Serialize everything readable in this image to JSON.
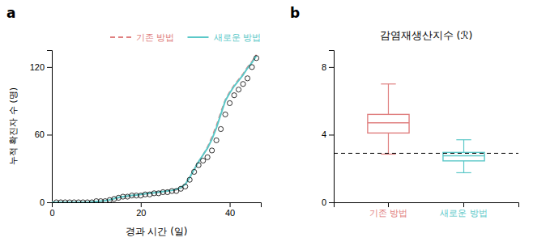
{
  "chart_data": [
    {
      "type": "line",
      "panel_label": "a",
      "xlabel": "경과 시간 (일)",
      "ylabel": "누적 확진자 수 (명)",
      "xlim": [
        0,
        47
      ],
      "ylim": [
        0,
        135
      ],
      "xticks": [
        0,
        20,
        40
      ],
      "yticks": [
        0,
        60,
        120
      ],
      "grid": false,
      "legend": "upper right",
      "series": [
        {
          "name": "기존 방법",
          "type": "line",
          "line_style": "dashed",
          "color": "#e08080",
          "x": [
            0,
            2,
            4,
            6,
            8,
            10,
            11,
            12,
            13,
            14,
            15,
            16,
            17,
            18,
            19,
            20,
            21,
            22,
            23,
            24,
            25,
            26,
            27,
            28,
            29,
            30,
            31,
            32,
            33,
            34,
            35,
            36,
            37,
            38,
            39,
            40,
            41,
            42,
            43,
            44,
            45,
            46
          ],
          "values": [
            0,
            0,
            0,
            0,
            0,
            0.5,
            0.8,
            1.2,
            2.0,
            3.0,
            4.0,
            4.7,
            5.3,
            5.8,
            6.3,
            6.8,
            7.3,
            7.8,
            8.3,
            8.8,
            9.3,
            9.8,
            10.3,
            11.0,
            12.5,
            16,
            22,
            29,
            36,
            42,
            49,
            58,
            68,
            80,
            91,
            98,
            104,
            109,
            114,
            120,
            125,
            131
          ]
        },
        {
          "name": "새로운 방법",
          "type": "line",
          "line_style": "solid",
          "color": "#5bc8c8",
          "x": [
            0,
            2,
            4,
            6,
            8,
            10,
            11,
            12,
            13,
            14,
            15,
            16,
            17,
            18,
            19,
            20,
            21,
            22,
            23,
            24,
            25,
            26,
            27,
            28,
            29,
            30,
            31,
            32,
            33,
            34,
            35,
            36,
            37,
            38,
            39,
            40,
            41,
            42,
            43,
            44,
            45,
            46
          ],
          "values": [
            0,
            0,
            0,
            0,
            0,
            0.8,
            1.0,
            1.5,
            2.2,
            3.2,
            4.3,
            5.0,
            5.6,
            6.1,
            6.5,
            7.0,
            7.5,
            8.0,
            8.5,
            9.0,
            9.5,
            10.0,
            10.5,
            11.5,
            13.0,
            16,
            22,
            29,
            36,
            42,
            48,
            56,
            66,
            78,
            90,
            97,
            103,
            108,
            113,
            119,
            124,
            130
          ]
        },
        {
          "type": "scatter",
          "marker": "circle",
          "color": "#000000",
          "x": [
            1,
            2,
            3,
            4,
            5,
            6,
            7,
            8,
            9,
            10,
            11,
            12,
            13,
            14,
            15,
            16,
            17,
            18,
            19,
            20,
            21,
            22,
            23,
            24,
            25,
            26,
            27,
            28,
            29,
            30,
            31,
            32,
            33,
            34,
            35,
            36,
            37,
            38,
            39,
            40,
            41,
            42,
            43,
            44,
            45,
            46
          ],
          "values": [
            0,
            0,
            0,
            0,
            0,
            0,
            0,
            0,
            0,
            1,
            1,
            1,
            2,
            3,
            4,
            5,
            5,
            6,
            6,
            6,
            7,
            7,
            8,
            8,
            9,
            9,
            10,
            10,
            12,
            14,
            20,
            27,
            33,
            37,
            40,
            46,
            55,
            65,
            78,
            88,
            95,
            100,
            105,
            110,
            120,
            128
          ]
        }
      ]
    },
    {
      "type": "box",
      "panel_label": "b",
      "title": "감염재생산지수 (ℛ)",
      "categories": [
        "기존 방법",
        "새로운 방법"
      ],
      "ylim": [
        0,
        9
      ],
      "yticks": [
        0,
        4,
        8
      ],
      "grid": false,
      "boxes": [
        {
          "median": 4.7,
          "q1": 4.1,
          "q3": 5.2,
          "whisker_low": 2.85,
          "whisker_high": 7.0,
          "color": "#e08080"
        },
        {
          "median": 2.75,
          "q1": 2.45,
          "q3": 2.95,
          "whisker_low": 1.75,
          "whisker_high": 3.7,
          "color": "#5bc8c8"
        }
      ],
      "reference_line": {
        "value": 2.9,
        "line_style": "dashed",
        "color": "#000000"
      }
    }
  ]
}
